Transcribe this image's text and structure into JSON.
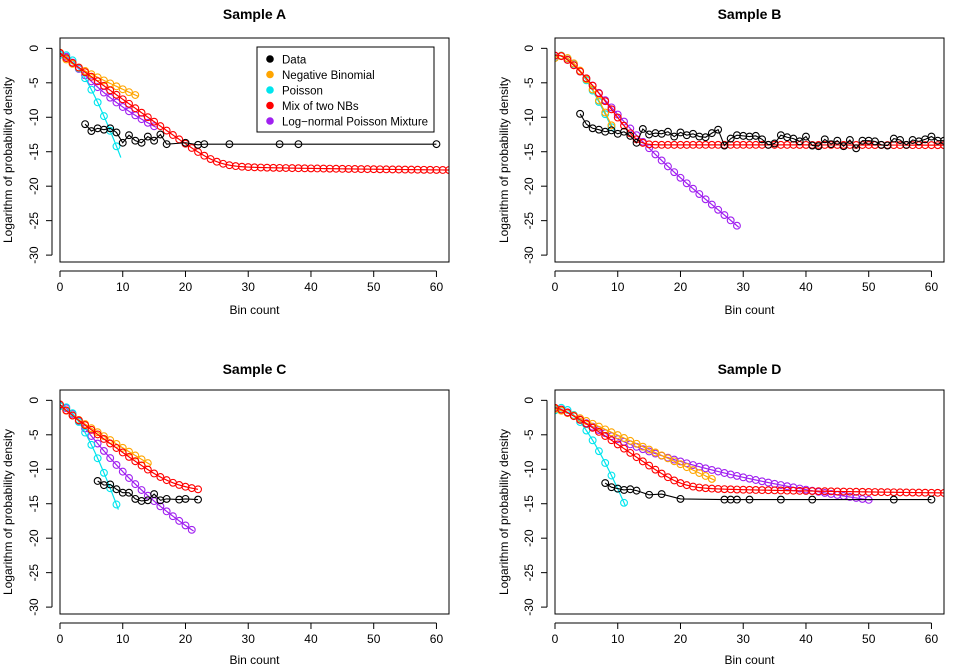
{
  "figure": {
    "ylabel": "Logarithm of probability density",
    "xlabel": "Bin count"
  },
  "colors": {
    "data": "#000000",
    "negbin": "#FFA500",
    "poisson": "#00E5EE",
    "mix": "#FF0000",
    "lognormal": "#A020F0"
  },
  "legend": {
    "entries": [
      "Data",
      "Negative Binomial",
      "Poisson",
      "Mix of two NBs",
      "Log−normal Poisson Mixture"
    ]
  },
  "chart_data": [
    {
      "type": "line",
      "title": "Sample A",
      "xlabel": "Bin count",
      "ylabel": "Logarithm of probability density",
      "xlim": [
        0,
        62
      ],
      "ylim": [
        -31,
        1.5
      ],
      "xticks": [
        0,
        10,
        20,
        30,
        40,
        50,
        60
      ],
      "yticks": [
        0,
        -5,
        -10,
        -15,
        -20,
        -25,
        -30
      ],
      "legend_position": "top-right",
      "series": [
        {
          "name": "Data",
          "x": [
            4,
            5,
            6,
            7,
            8,
            9,
            10,
            11,
            12,
            13,
            14,
            15,
            16,
            17,
            20,
            22,
            23,
            27,
            35,
            38,
            60
          ],
          "y": [
            -11,
            -12,
            -11.6,
            -11.8,
            -11.6,
            -12.2,
            -13.7,
            -12.6,
            -13.4,
            -13.7,
            -12.8,
            -13.4,
            -12.5,
            -13.9,
            -13.7,
            -14,
            -13.9,
            -13.9,
            -13.9,
            -13.9,
            -13.9
          ]
        },
        {
          "name": "Negative Binomial",
          "model": "negbin",
          "params": {
            "m": 1.2,
            "k": 0.55
          },
          "x_max": 12.5
        },
        {
          "name": "Poisson",
          "model": "poisson",
          "params": {
            "lambda": 0.95
          },
          "x_max": 9.7
        },
        {
          "name": "Mix of two NBs",
          "model": "mix",
          "params": {
            "w": 0.999992,
            "m1": 1.0,
            "k1": 0.9,
            "m2": 300,
            "k2": 0.55
          },
          "x_max": 62
        },
        {
          "name": "Log-normal Poisson Mixture",
          "model": "lnp",
          "params": {
            "mu": -0.4,
            "s": 0.72
          },
          "x_max": 15.3
        }
      ]
    },
    {
      "type": "line",
      "title": "Sample B",
      "xlabel": "Bin count",
      "ylabel": "Logarithm of probability density",
      "xlim": [
        0,
        62
      ],
      "ylim": [
        -31,
        1.5
      ],
      "xticks": [
        0,
        10,
        20,
        30,
        40,
        50,
        60
      ],
      "yticks": [
        0,
        -5,
        -10,
        -15,
        -20,
        -25,
        -30
      ],
      "series": [
        {
          "name": "Data",
          "x": [
            4,
            5,
            6,
            7,
            8,
            9,
            10,
            11,
            12,
            13,
            14,
            15,
            16,
            17,
            18,
            19,
            20,
            21,
            22,
            23,
            24,
            25,
            26,
            27,
            28,
            29,
            30,
            31,
            32,
            33,
            34,
            35,
            36,
            37,
            38,
            39,
            40,
            41,
            42,
            43,
            44,
            45,
            46,
            47,
            48,
            49,
            50,
            51,
            52,
            53,
            54,
            55,
            56,
            57,
            58,
            59,
            60,
            61,
            62
          ],
          "y": [
            -9.5,
            -11,
            -11.6,
            -11.8,
            -12.1,
            -11.9,
            -12.4,
            -12.1,
            -12.7,
            -13.7,
            -11.7,
            -12.5,
            -12.3,
            -12.4,
            -12.1,
            -12.8,
            -12.2,
            -12.6,
            -12.4,
            -12.8,
            -12.9,
            -12.3,
            -11.8,
            -14.1,
            -13.1,
            -12.6,
            -12.7,
            -12.8,
            -12.7,
            -13.2,
            -14,
            -13.8,
            -12.6,
            -12.9,
            -13.1,
            -13.5,
            -12.8,
            -14.1,
            -14.2,
            -13.2,
            -13.9,
            -13.4,
            -14.2,
            -13.3,
            -14.5,
            -13.4,
            -13.4,
            -13.5,
            -14,
            -14.1,
            -13.1,
            -13.3,
            -14,
            -13.3,
            -13.5,
            -13.2,
            -12.8,
            -13.4,
            -13.4
          ]
        },
        {
          "name": "Negative Binomial",
          "model": "poisson",
          "params": {
            "lambda": 1.4
          },
          "x_max": 9.2
        },
        {
          "name": "Poisson",
          "model": "poisson",
          "params": {
            "lambda": 1.35
          },
          "x_max": 9.0
        },
        {
          "name": "Mix of two NBs",
          "model": "mix",
          "params": {
            "w": 0.9997,
            "m1": 1.2,
            "k1": 4,
            "m2": 300,
            "k2": 1.1
          },
          "x_max": 62
        },
        {
          "name": "Log-normal Poisson Mixture",
          "model": "lnp",
          "params": {
            "mu": 0.1,
            "s": 0.45
          },
          "x_max": 29.3
        }
      ]
    },
    {
      "type": "line",
      "title": "Sample C",
      "xlabel": "Bin count",
      "ylabel": "Logarithm of probability density",
      "xlim": [
        0,
        62
      ],
      "ylim": [
        -31,
        1.5
      ],
      "xticks": [
        0,
        10,
        20,
        30,
        40,
        50,
        60
      ],
      "yticks": [
        0,
        -5,
        -10,
        -15,
        -20,
        -25,
        -30
      ],
      "series": [
        {
          "name": "Data",
          "x": [
            6,
            7,
            8,
            9,
            10,
            11,
            12,
            13,
            14,
            15,
            16,
            17,
            19,
            20,
            22
          ],
          "y": [
            -11.7,
            -12.3,
            -12.2,
            -12.9,
            -13.4,
            -13.4,
            -14.3,
            -14.6,
            -14.5,
            -13.6,
            -14.5,
            -14.3,
            -14.4,
            -14.3,
            -14.4
          ]
        },
        {
          "name": "Negative Binomial",
          "model": "negbin",
          "params": {
            "m": 1.0,
            "k": 0.7
          },
          "x_max": 14.5
        },
        {
          "name": "Poisson",
          "model": "poisson",
          "params": {
            "lambda": 0.85
          },
          "x_max": 9.3
        },
        {
          "name": "Mix of two NBs",
          "model": "mix",
          "params": {
            "w": 0.9996,
            "m1": 0.9,
            "k1": 0.8,
            "m2": 6,
            "k2": 0.6
          },
          "x_max": 22
        },
        {
          "name": "Log-normal Poisson Mixture",
          "model": "lnp",
          "params": {
            "mu": -0.3,
            "s": 0.55
          },
          "x_max": 21.3
        }
      ]
    },
    {
      "type": "line",
      "title": "Sample D",
      "xlabel": "Bin count",
      "ylabel": "Logarithm of probability density",
      "xlim": [
        0,
        62
      ],
      "ylim": [
        -31,
        1.5
      ],
      "xticks": [
        0,
        10,
        20,
        30,
        40,
        50,
        60
      ],
      "yticks": [
        0,
        -5,
        -10,
        -15,
        -20,
        -25,
        -30
      ],
      "series": [
        {
          "name": "Data",
          "x": [
            8,
            9,
            10,
            11,
            12,
            13,
            15,
            17,
            20,
            27,
            28,
            29,
            31,
            36,
            41,
            54,
            60
          ],
          "y": [
            -12,
            -12.6,
            -12.8,
            -13,
            -12.9,
            -13.1,
            -13.7,
            -13.6,
            -14.3,
            -14.4,
            -14.4,
            -14.4,
            -14.4,
            -14.4,
            -14.4,
            -14.4,
            -14.4
          ]
        },
        {
          "name": "Negative Binomial",
          "model": "negbin",
          "params": {
            "m": 2.2,
            "k": 1.2
          },
          "x_max": 25.6
        },
        {
          "name": "Poisson",
          "model": "poisson",
          "params": {
            "lambda": 1.45
          },
          "x_max": 11.2
        },
        {
          "name": "Mix of two NBs",
          "model": "mix",
          "params": {
            "w": 0.9995,
            "m1": 1.6,
            "k1": 1.5,
            "m2": 200,
            "k2": 0.45
          },
          "x_max": 62
        },
        {
          "name": "Log-normal Poisson Mixture",
          "model": "lnp",
          "params": {
            "mu": 0.3,
            "s": 0.8
          },
          "x_max": 50.4
        }
      ]
    }
  ]
}
